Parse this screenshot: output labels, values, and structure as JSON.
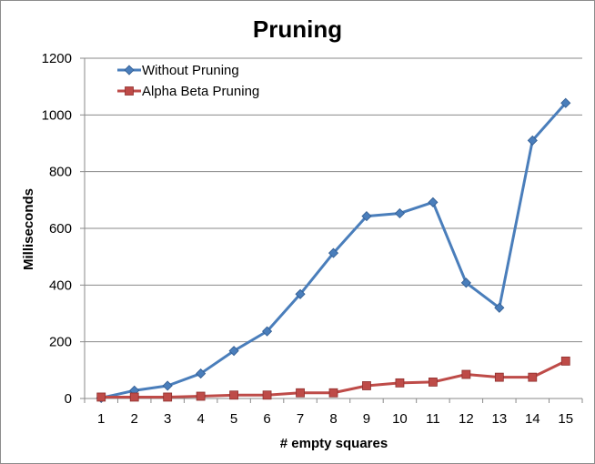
{
  "chart_data": {
    "type": "line",
    "title": "Pruning",
    "xlabel": "# empty squares",
    "ylabel": "Milliseconds",
    "x": [
      1,
      2,
      3,
      4,
      5,
      6,
      7,
      8,
      9,
      10,
      11,
      12,
      13,
      14,
      15
    ],
    "ylim": [
      0,
      1200
    ],
    "yticks": [
      0,
      200,
      400,
      600,
      800,
      1000,
      1200
    ],
    "grid": "horizontal",
    "legend_position": "top-left",
    "series": [
      {
        "name": "Without Pruning",
        "color": "#4a7ebb",
        "marker": "diamond",
        "values": [
          2,
          28,
          45,
          88,
          168,
          237,
          368,
          513,
          643,
          653,
          692,
          408,
          320,
          910,
          1042
        ]
      },
      {
        "name": "Alpha Beta Pruning",
        "color": "#be4b48",
        "marker": "square",
        "values": [
          5,
          5,
          5,
          8,
          12,
          12,
          20,
          20,
          45,
          55,
          58,
          85,
          75,
          75,
          132
        ]
      }
    ]
  }
}
